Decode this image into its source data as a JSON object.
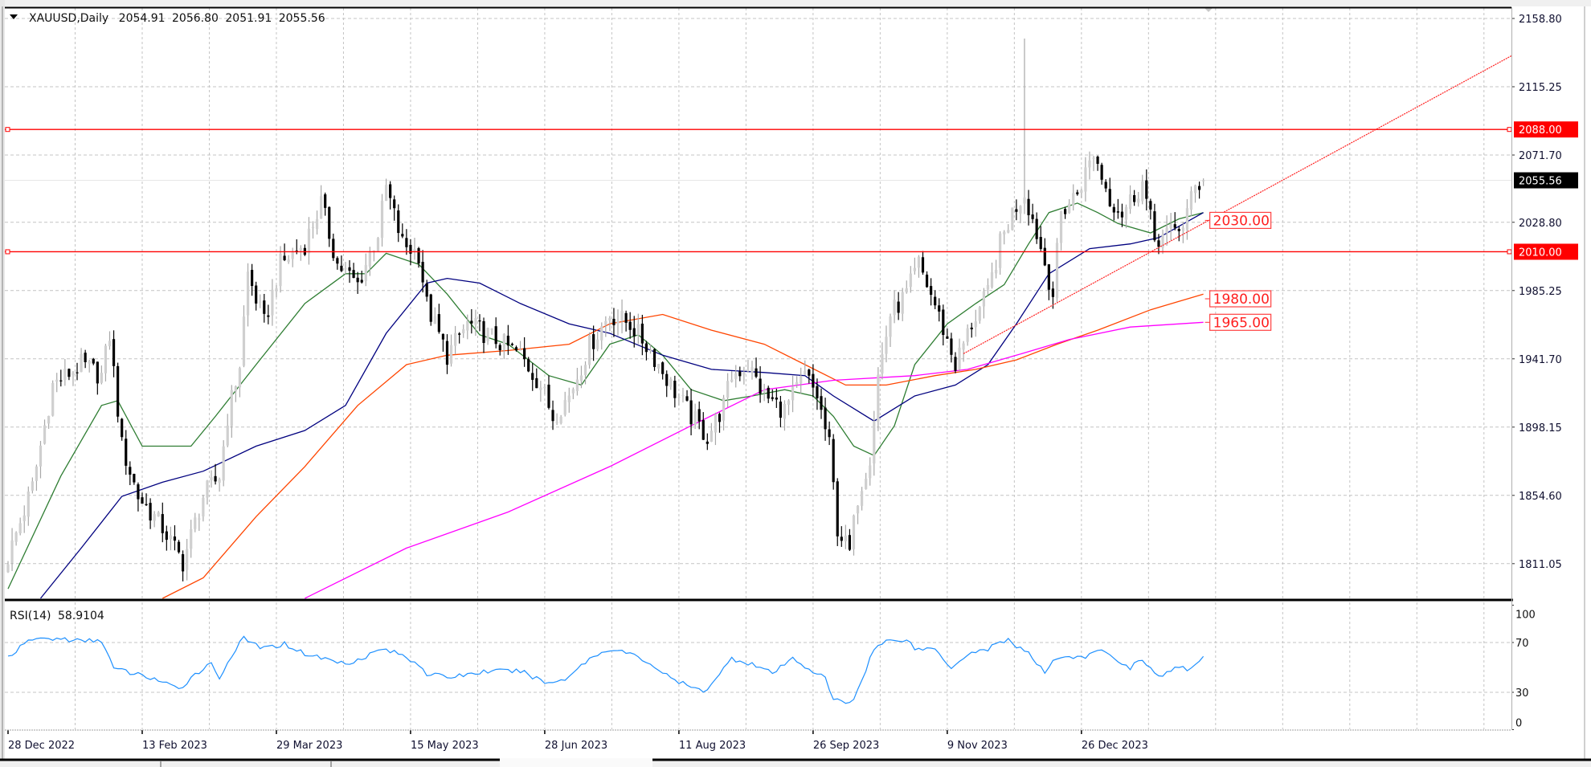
{
  "header": {
    "symbol": "XAUUSD,Daily",
    "open": "2054.91",
    "high": "2056.80",
    "low": "2051.91",
    "close": "2055.56",
    "menu_icon": "triangle-down-icon"
  },
  "rsi_label": {
    "name": "RSI(14)",
    "value": "58.9104"
  },
  "colors": {
    "bear_candle": "#000000",
    "bull_candle": "#cfcfcf",
    "level_line": "#ff0000",
    "rsi_line": "#1e90ff",
    "grid": "#c0c0c0",
    "current_price_label_bg": "#000000"
  },
  "chart_data": {
    "type": "candlestick",
    "symbol": "XAUUSD",
    "timeframe": "Daily",
    "bar_count": 295,
    "price_axis": {
      "range": [
        1785,
        2165
      ],
      "ticks": [
        {
          "value": 2158.8,
          "label": "2158.80"
        },
        {
          "value": 2115.25,
          "label": "2115.25"
        },
        {
          "value": 2071.7,
          "label": "2071.70"
        },
        {
          "value": 2028.8,
          "label": "2028.80"
        },
        {
          "value": 1985.25,
          "label": "1985.25"
        },
        {
          "value": 1941.7,
          "label": "1941.70"
        },
        {
          "value": 1898.15,
          "label": "1898.15"
        },
        {
          "value": 1854.6,
          "label": "1854.60"
        },
        {
          "value": 1811.05,
          "label": "1811.05"
        }
      ]
    },
    "time_axis": {
      "labels": [
        {
          "bar": 0,
          "label": "28 Dec 2022"
        },
        {
          "bar": 33,
          "label": "13 Feb 2023"
        },
        {
          "bar": 66,
          "label": "29 Mar 2023"
        },
        {
          "bar": 99,
          "label": "15 May 2023"
        },
        {
          "bar": 132,
          "label": "28 Jun 2023"
        },
        {
          "bar": 165,
          "label": "11 Aug 2023"
        },
        {
          "bar": 198,
          "label": "26 Sep 2023"
        },
        {
          "bar": 231,
          "label": "9 Nov 2023"
        },
        {
          "bar": 264,
          "label": "26 Dec 2023"
        }
      ],
      "grid_every_bars": 16.5
    },
    "close_path": [
      [
        0,
        1815
      ],
      [
        6,
        1860
      ],
      [
        11,
        1925
      ],
      [
        18,
        1938
      ],
      [
        23,
        1931
      ],
      [
        25,
        1957
      ],
      [
        28,
        1886
      ],
      [
        32,
        1854
      ],
      [
        38,
        1834
      ],
      [
        43,
        1812
      ],
      [
        48,
        1854
      ],
      [
        52,
        1867
      ],
      [
        54,
        1905
      ],
      [
        57,
        1938
      ],
      [
        59,
        1996
      ],
      [
        63,
        1964
      ],
      [
        67,
        2002
      ],
      [
        73,
        2015
      ],
      [
        77,
        2041
      ],
      [
        81,
        2002
      ],
      [
        86,
        1989
      ],
      [
        91,
        2022
      ],
      [
        93,
        2051
      ],
      [
        97,
        2015
      ],
      [
        101,
        2009
      ],
      [
        103,
        1976
      ],
      [
        108,
        1944
      ],
      [
        113,
        1964
      ],
      [
        118,
        1957
      ],
      [
        126,
        1944
      ],
      [
        131,
        1925
      ],
      [
        134,
        1905
      ],
      [
        138,
        1918
      ],
      [
        143,
        1950
      ],
      [
        148,
        1970
      ],
      [
        153,
        1964
      ],
      [
        158,
        1947
      ],
      [
        163,
        1925
      ],
      [
        168,
        1905
      ],
      [
        172,
        1892
      ],
      [
        176,
        1912
      ],
      [
        178,
        1931
      ],
      [
        182,
        1938
      ],
      [
        186,
        1918
      ],
      [
        191,
        1909
      ],
      [
        196,
        1931
      ],
      [
        199,
        1918
      ],
      [
        202,
        1886
      ],
      [
        204,
        1834
      ],
      [
        207,
        1818
      ],
      [
        209,
        1854
      ],
      [
        212,
        1880
      ],
      [
        214,
        1931
      ],
      [
        217,
        1970
      ],
      [
        221,
        1983
      ],
      [
        224,
        2002
      ],
      [
        228,
        1976
      ],
      [
        233,
        1938
      ],
      [
        237,
        1964
      ],
      [
        241,
        1983
      ],
      [
        244,
        2015
      ],
      [
        247,
        2035
      ],
      [
        250,
        2048
      ],
      [
        253,
        2022
      ],
      [
        257,
        1983
      ],
      [
        259,
        2035
      ],
      [
        263,
        2048
      ],
      [
        267,
        2073
      ],
      [
        271,
        2044
      ],
      [
        274,
        2035
      ],
      [
        279,
        2054
      ],
      [
        282,
        2018
      ],
      [
        286,
        2022
      ],
      [
        289,
        2028
      ],
      [
        292,
        2051
      ],
      [
        294,
        2055.56
      ]
    ],
    "spike": {
      "bar": 250,
      "high": 2146
    },
    "last_bar": {
      "open": 2054.91,
      "high": 2056.8,
      "low": 2051.91,
      "close": 2055.56
    },
    "moving_averages": [
      {
        "name": "ma-fast",
        "color": "#2e7d32",
        "points": [
          [
            0,
            1795
          ],
          [
            13,
            1867
          ],
          [
            23,
            1912
          ],
          [
            27,
            1915
          ],
          [
            33,
            1886
          ],
          [
            45,
            1886
          ],
          [
            51,
            1905
          ],
          [
            61,
            1938
          ],
          [
            73,
            1977
          ],
          [
            83,
            1996
          ],
          [
            88,
            1996
          ],
          [
            93,
            2009
          ],
          [
            101,
            2002
          ],
          [
            108,
            1983
          ],
          [
            116,
            1957
          ],
          [
            123,
            1951
          ],
          [
            133,
            1931
          ],
          [
            141,
            1925
          ],
          [
            148,
            1951
          ],
          [
            155,
            1957
          ],
          [
            161,
            1944
          ],
          [
            168,
            1922
          ],
          [
            176,
            1915
          ],
          [
            183,
            1918
          ],
          [
            191,
            1922
          ],
          [
            198,
            1918
          ],
          [
            203,
            1905
          ],
          [
            208,
            1886
          ],
          [
            213,
            1880
          ],
          [
            218,
            1899
          ],
          [
            223,
            1938
          ],
          [
            231,
            1964
          ],
          [
            238,
            1977
          ],
          [
            245,
            1989
          ],
          [
            251,
            2015
          ],
          [
            256,
            2035
          ],
          [
            263,
            2041
          ],
          [
            268,
            2035
          ],
          [
            273,
            2028
          ],
          [
            281,
            2022
          ],
          [
            288,
            2031
          ],
          [
            294,
            2035
          ]
        ]
      },
      {
        "name": "ma-medium",
        "color": "#00007f",
        "points": [
          [
            8,
            1788
          ],
          [
            18,
            1821
          ],
          [
            28,
            1854
          ],
          [
            38,
            1863
          ],
          [
            48,
            1870
          ],
          [
            61,
            1886
          ],
          [
            73,
            1896
          ],
          [
            83,
            1912
          ],
          [
            93,
            1958
          ],
          [
            103,
            1990
          ],
          [
            108,
            1993
          ],
          [
            116,
            1990
          ],
          [
            126,
            1977
          ],
          [
            138,
            1964
          ],
          [
            148,
            1958
          ],
          [
            161,
            1944
          ],
          [
            173,
            1935
          ],
          [
            186,
            1933
          ],
          [
            196,
            1931
          ],
          [
            203,
            1918
          ],
          [
            213,
            1902
          ],
          [
            223,
            1918
          ],
          [
            233,
            1925
          ],
          [
            241,
            1938
          ],
          [
            248,
            1964
          ],
          [
            256,
            1996
          ],
          [
            266,
            2012
          ],
          [
            276,
            2015
          ],
          [
            283,
            2019
          ],
          [
            294,
            2035
          ]
        ]
      },
      {
        "name": "ma-slow",
        "color": "#ff4500",
        "points": [
          [
            38,
            1788
          ],
          [
            48,
            1802
          ],
          [
            61,
            1841
          ],
          [
            73,
            1873
          ],
          [
            86,
            1912
          ],
          [
            98,
            1938
          ],
          [
            108,
            1944
          ],
          [
            123,
            1947
          ],
          [
            138,
            1951
          ],
          [
            148,
            1964
          ],
          [
            161,
            1970
          ],
          [
            173,
            1960
          ],
          [
            186,
            1951
          ],
          [
            196,
            1938
          ],
          [
            206,
            1925
          ],
          [
            216,
            1925
          ],
          [
            228,
            1931
          ],
          [
            238,
            1935
          ],
          [
            248,
            1941
          ],
          [
            258,
            1951
          ],
          [
            268,
            1960
          ],
          [
            281,
            1973
          ],
          [
            294,
            1983
          ]
        ]
      },
      {
        "name": "ma-long",
        "color": "#ff00ff",
        "points": [
          [
            73,
            1788
          ],
          [
            98,
            1821
          ],
          [
            123,
            1844
          ],
          [
            148,
            1873
          ],
          [
            168,
            1899
          ],
          [
            186,
            1922
          ],
          [
            203,
            1928
          ],
          [
            223,
            1931
          ],
          [
            236,
            1935
          ],
          [
            248,
            1944
          ],
          [
            261,
            1954
          ],
          [
            276,
            1962
          ],
          [
            294,
            1965
          ]
        ]
      }
    ],
    "horizontal_levels": [
      {
        "price": 2088.0,
        "label": "2088.00"
      },
      {
        "price": 2010.0,
        "label": "2010.00"
      }
    ],
    "current_price": {
      "value": 2055.56,
      "label": "2055.56"
    },
    "trendline": {
      "start": [
        235,
        1945
      ],
      "end": [
        371,
        2135
      ]
    },
    "annotations": [
      {
        "text": "2030.00",
        "price": 2030,
        "bar": 294
      },
      {
        "text": "1980.00",
        "price": 1980,
        "bar": 294
      },
      {
        "text": "1965.00",
        "price": 1965,
        "bar": 294
      }
    ],
    "rsi": {
      "period": 14,
      "levels": [
        70,
        30
      ],
      "axis_labels": [
        {
          "value": 100,
          "label": "100"
        },
        {
          "value": 70,
          "label": "70"
        },
        {
          "value": 30,
          "label": "30"
        },
        {
          "value": 0,
          "label": "0"
        }
      ],
      "points": [
        [
          0,
          58.6
        ],
        [
          6,
          73
        ],
        [
          13,
          73
        ],
        [
          18,
          71
        ],
        [
          23,
          72
        ],
        [
          26,
          49
        ],
        [
          31,
          45
        ],
        [
          36,
          41
        ],
        [
          42,
          32
        ],
        [
          46,
          45
        ],
        [
          50,
          53
        ],
        [
          52,
          42
        ],
        [
          56,
          65
        ],
        [
          58,
          73
        ],
        [
          63,
          65
        ],
        [
          68,
          69
        ],
        [
          73,
          61
        ],
        [
          78,
          57
        ],
        [
          83,
          53
        ],
        [
          88,
          59
        ],
        [
          92,
          65
        ],
        [
          96,
          61
        ],
        [
          101,
          53
        ],
        [
          103,
          45
        ],
        [
          108,
          42
        ],
        [
          118,
          47
        ],
        [
          126,
          47
        ],
        [
          133,
          37
        ],
        [
          137,
          41
        ],
        [
          143,
          57
        ],
        [
          148,
          65
        ],
        [
          153,
          61
        ],
        [
          158,
          53
        ],
        [
          163,
          41
        ],
        [
          171,
          30
        ],
        [
          176,
          49
        ],
        [
          178,
          57
        ],
        [
          183,
          53
        ],
        [
          188,
          45
        ],
        [
          193,
          57
        ],
        [
          197,
          49
        ],
        [
          201,
          41
        ],
        [
          203,
          24
        ],
        [
          206,
          22
        ],
        [
          208,
          24
        ],
        [
          211,
          49
        ],
        [
          213,
          65
        ],
        [
          216,
          71
        ],
        [
          221,
          73
        ],
        [
          223,
          65
        ],
        [
          228,
          65
        ],
        [
          232,
          50
        ],
        [
          236,
          61
        ],
        [
          241,
          65
        ],
        [
          246,
          73
        ],
        [
          248,
          67
        ],
        [
          251,
          61
        ],
        [
          255,
          45
        ],
        [
          257,
          57
        ],
        [
          261,
          59
        ],
        [
          265,
          57
        ],
        [
          268,
          65
        ],
        [
          271,
          59
        ],
        [
          276,
          50
        ],
        [
          279,
          57
        ],
        [
          283,
          42
        ],
        [
          287,
          49
        ],
        [
          291,
          49
        ],
        [
          294,
          58.9
        ]
      ]
    }
  }
}
